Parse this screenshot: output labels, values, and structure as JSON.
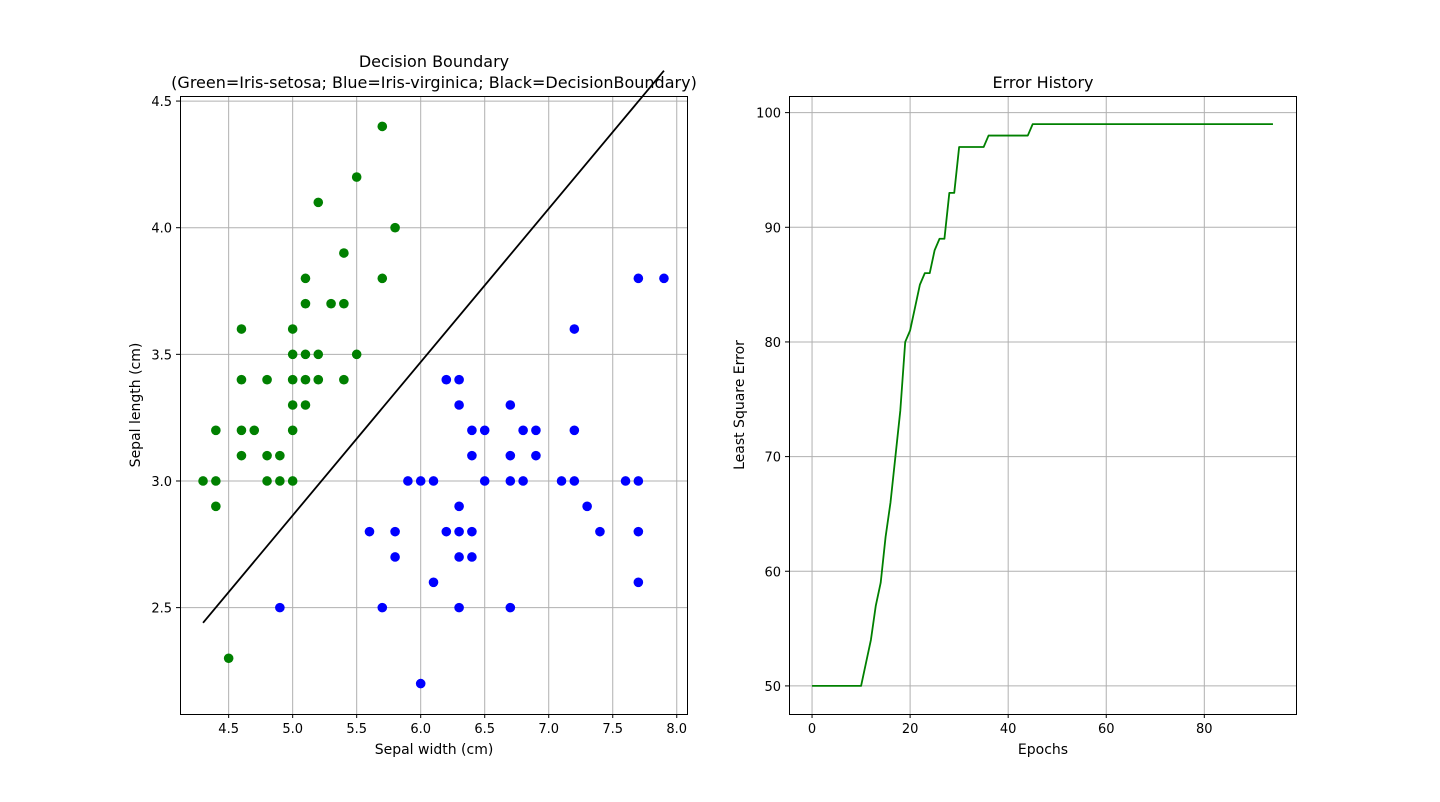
{
  "chart_data": [
    {
      "type": "scatter",
      "title": "Decision Boundary",
      "subtitle": "(Green=Iris-setosa; Blue=Iris-virginica; Black=DecisionBoundary)",
      "xlabel": "Sepal width (cm)",
      "ylabel": "Sepal length (cm)",
      "xlim": [
        4.12,
        8.08
      ],
      "ylim": [
        2.08,
        4.52
      ],
      "xticks": [
        "4.5",
        "5.0",
        "5.5",
        "6.0",
        "6.5",
        "7.0",
        "7.5",
        "8.0"
      ],
      "yticks": [
        "2.5",
        "3.0",
        "3.5",
        "4.0",
        "4.5"
      ],
      "grid": true,
      "series": [
        {
          "color": "#008000",
          "points": [
            [
              4.3,
              3.0
            ],
            [
              4.4,
              3.2
            ],
            [
              4.4,
              3.0
            ],
            [
              4.4,
              2.9
            ],
            [
              4.5,
              2.3
            ],
            [
              4.6,
              3.6
            ],
            [
              4.6,
              3.4
            ],
            [
              4.6,
              3.2
            ],
            [
              4.6,
              3.1
            ],
            [
              4.7,
              3.2
            ],
            [
              4.8,
              3.4
            ],
            [
              4.8,
              3.1
            ],
            [
              4.8,
              3.0
            ],
            [
              4.9,
              3.1
            ],
            [
              4.9,
              3.0
            ],
            [
              5.0,
              3.6
            ],
            [
              5.0,
              3.5
            ],
            [
              5.0,
              3.4
            ],
            [
              5.0,
              3.3
            ],
            [
              5.0,
              3.2
            ],
            [
              5.0,
              3.0
            ],
            [
              5.1,
              3.8
            ],
            [
              5.1,
              3.7
            ],
            [
              5.1,
              3.5
            ],
            [
              5.1,
              3.4
            ],
            [
              5.1,
              3.3
            ],
            [
              5.2,
              4.1
            ],
            [
              5.2,
              3.5
            ],
            [
              5.2,
              3.4
            ],
            [
              5.3,
              3.7
            ],
            [
              5.4,
              3.9
            ],
            [
              5.4,
              3.7
            ],
            [
              5.4,
              3.4
            ],
            [
              5.5,
              4.2
            ],
            [
              5.5,
              3.5
            ],
            [
              5.7,
              4.4
            ],
            [
              5.7,
              3.8
            ],
            [
              5.8,
              4.0
            ]
          ]
        },
        {
          "color": "#0000ff",
          "points": [
            [
              4.9,
              2.5
            ],
            [
              5.6,
              2.8
            ],
            [
              5.7,
              2.5
            ],
            [
              5.8,
              2.8
            ],
            [
              5.8,
              2.7
            ],
            [
              5.9,
              3.0
            ],
            [
              6.0,
              3.0
            ],
            [
              6.0,
              2.2
            ],
            [
              6.1,
              3.0
            ],
            [
              6.1,
              2.6
            ],
            [
              6.2,
              3.4
            ],
            [
              6.2,
              2.8
            ],
            [
              6.3,
              3.4
            ],
            [
              6.3,
              3.3
            ],
            [
              6.3,
              2.9
            ],
            [
              6.3,
              2.8
            ],
            [
              6.3,
              2.7
            ],
            [
              6.3,
              2.5
            ],
            [
              6.4,
              3.2
            ],
            [
              6.4,
              3.1
            ],
            [
              6.4,
              2.8
            ],
            [
              6.4,
              2.7
            ],
            [
              6.5,
              3.2
            ],
            [
              6.5,
              3.0
            ],
            [
              6.7,
              3.3
            ],
            [
              6.7,
              3.1
            ],
            [
              6.7,
              3.0
            ],
            [
              6.7,
              2.5
            ],
            [
              6.8,
              3.2
            ],
            [
              6.8,
              3.0
            ],
            [
              6.9,
              3.2
            ],
            [
              6.9,
              3.1
            ],
            [
              7.1,
              3.0
            ],
            [
              7.2,
              3.6
            ],
            [
              7.2,
              3.2
            ],
            [
              7.2,
              3.0
            ],
            [
              7.3,
              2.9
            ],
            [
              7.4,
              2.8
            ],
            [
              7.6,
              3.0
            ],
            [
              7.7,
              3.8
            ],
            [
              7.7,
              3.0
            ],
            [
              7.7,
              2.8
            ],
            [
              7.7,
              2.6
            ],
            [
              7.9,
              3.8
            ]
          ]
        }
      ],
      "boundary": {
        "color": "#000000",
        "points": [
          [
            4.3,
            2.44
          ],
          [
            7.9,
            4.62
          ]
        ]
      }
    },
    {
      "type": "line",
      "title": "Error History",
      "xlabel": "Epochs",
      "ylabel": "Least Square Error",
      "xlim": [
        -4.7,
        98.7
      ],
      "ylim": [
        47.55,
        101.45
      ],
      "xticks": [
        "0",
        "20",
        "40",
        "60",
        "80"
      ],
      "yticks": [
        "50",
        "60",
        "70",
        "80",
        "90",
        "100"
      ],
      "grid": true,
      "series": [
        {
          "color": "#008000",
          "x": [
            0,
            1,
            2,
            3,
            4,
            5,
            6,
            7,
            8,
            9,
            10,
            11,
            12,
            13,
            14,
            15,
            16,
            17,
            18,
            19,
            20,
            21,
            22,
            23,
            24,
            25,
            26,
            27,
            28,
            29,
            30,
            31,
            32,
            33,
            34,
            35,
            36,
            37,
            38,
            39,
            40,
            41,
            42,
            43,
            44,
            45,
            46,
            47,
            48,
            49,
            50,
            51,
            52,
            53,
            54,
            55,
            56,
            57,
            58,
            59,
            60,
            61,
            62,
            63,
            64,
            65,
            66,
            67,
            68,
            69,
            70,
            71,
            72,
            73,
            74,
            75,
            76,
            77,
            78,
            79,
            80,
            81,
            82,
            83,
            84,
            85,
            86,
            87,
            88,
            89,
            90,
            91,
            92,
            93,
            94
          ],
          "y": [
            50,
            50,
            50,
            50,
            50,
            50,
            50,
            50,
            50,
            50,
            50,
            52,
            54,
            57,
            59,
            63,
            66,
            70,
            74,
            80,
            81,
            83,
            85,
            86,
            86,
            88,
            89,
            89,
            93,
            93,
            97,
            97,
            97,
            97,
            97,
            97,
            98,
            98,
            98,
            98,
            98,
            98,
            98,
            98,
            98,
            99,
            99,
            99,
            99,
            99,
            99,
            99,
            99,
            99,
            99,
            99,
            99,
            99,
            99,
            99,
            99,
            99,
            99,
            99,
            99,
            99,
            99,
            99,
            99,
            99,
            99,
            99,
            99,
            99,
            99,
            99,
            99,
            99,
            99,
            99,
            99,
            99,
            99,
            99,
            99,
            99,
            99,
            99,
            99,
            99,
            99,
            99,
            99,
            99,
            99
          ]
        }
      ]
    }
  ]
}
